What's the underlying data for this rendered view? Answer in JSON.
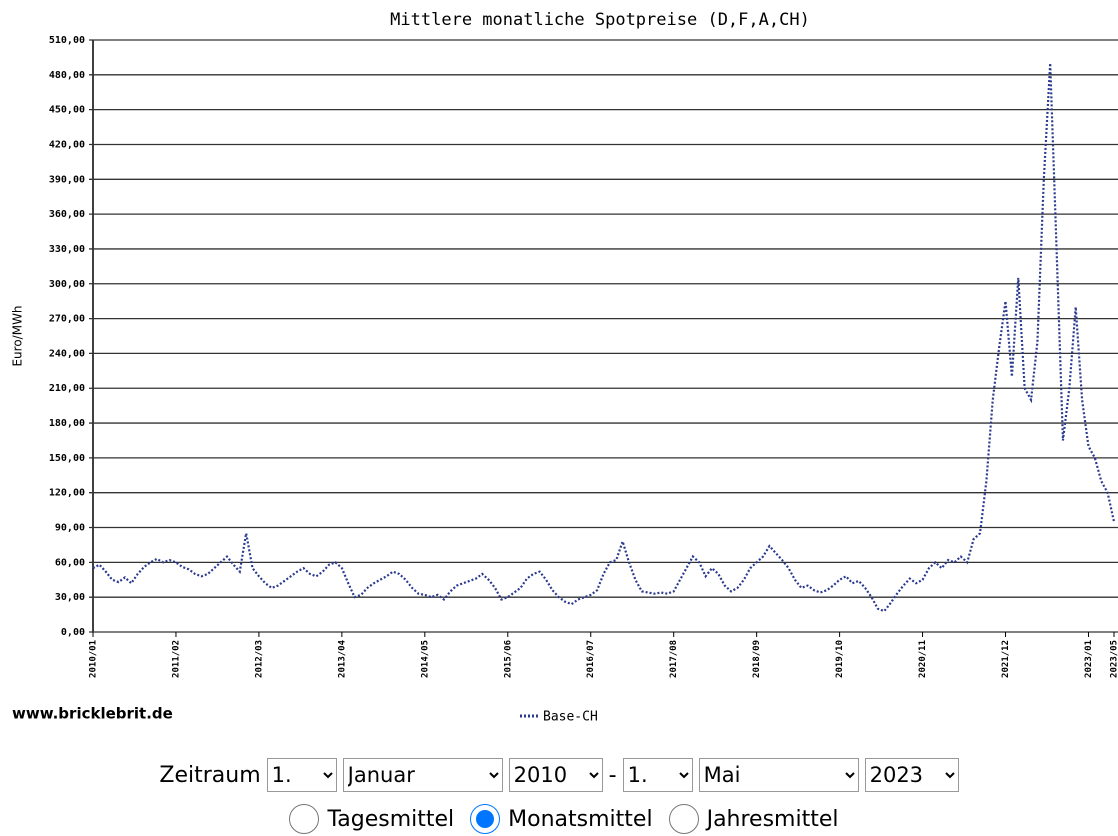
{
  "chart_data": {
    "type": "line",
    "title": "Mittlere monatliche Spotpreise (D,F,A,CH)",
    "y_label": "Euro/MWh",
    "source": "www.bricklebrit.de",
    "categories": [
      "2010/01",
      null,
      null,
      null,
      null,
      null,
      null,
      null,
      null,
      null,
      null,
      null,
      null,
      "2011/02",
      null,
      null,
      null,
      null,
      null,
      null,
      null,
      null,
      null,
      null,
      null,
      null,
      "2012/03",
      null,
      null,
      null,
      null,
      null,
      null,
      null,
      null,
      null,
      null,
      null,
      null,
      "2013/04",
      null,
      null,
      null,
      null,
      null,
      null,
      null,
      null,
      null,
      null,
      null,
      null,
      "2014/05",
      null,
      null,
      null,
      null,
      null,
      null,
      null,
      null,
      null,
      null,
      null,
      null,
      "2015/06",
      null,
      null,
      null,
      null,
      null,
      null,
      null,
      null,
      null,
      null,
      null,
      null,
      "2016/07",
      null,
      null,
      null,
      null,
      null,
      null,
      null,
      null,
      null,
      null,
      null,
      null,
      "2017/08",
      null,
      null,
      null,
      null,
      null,
      null,
      null,
      null,
      null,
      null,
      null,
      null,
      "2018/09",
      null,
      null,
      null,
      null,
      null,
      null,
      null,
      null,
      null,
      null,
      null,
      null,
      "2019/10",
      null,
      null,
      null,
      null,
      null,
      null,
      null,
      null,
      null,
      null,
      null,
      null,
      "2020/11",
      null,
      null,
      null,
      null,
      null,
      null,
      null,
      null,
      null,
      null,
      null,
      null,
      "2021/12",
      null,
      null,
      null,
      null,
      null,
      null,
      null,
      null,
      null,
      null,
      null,
      null,
      "2023/01",
      null,
      null,
      null,
      "2023/05"
    ],
    "series": [
      {
        "name": "Base-CH",
        "color": "#2b3a8f",
        "values": [
          55,
          58,
          52,
          45,
          43,
          47,
          42,
          50,
          56,
          60,
          63,
          60,
          62,
          60,
          56,
          54,
          50,
          48,
          50,
          55,
          60,
          65,
          58,
          52,
          85,
          55,
          48,
          42,
          38,
          40,
          44,
          48,
          52,
          55,
          50,
          48,
          52,
          58,
          60,
          55,
          42,
          30,
          32,
          38,
          42,
          45,
          48,
          52,
          50,
          45,
          38,
          33,
          32,
          30,
          32,
          28,
          35,
          40,
          42,
          44,
          46,
          50,
          45,
          38,
          28,
          30,
          34,
          38,
          46,
          50,
          52,
          45,
          36,
          30,
          26,
          24,
          28,
          30,
          32,
          36,
          50,
          60,
          62,
          78,
          60,
          45,
          35,
          34,
          33,
          34,
          33,
          35,
          45,
          55,
          65,
          60,
          48,
          55,
          50,
          40,
          35,
          38,
          45,
          55,
          60,
          65,
          74,
          68,
          62,
          55,
          45,
          38,
          40,
          36,
          34,
          36,
          40,
          45,
          48,
          42,
          44,
          38,
          30,
          20,
          18,
          25,
          33,
          40,
          46,
          42,
          45,
          55,
          60,
          55,
          62,
          60,
          65,
          60,
          80,
          85,
          130,
          200,
          245,
          285,
          220,
          305,
          210,
          200,
          250,
          390,
          490,
          330,
          165,
          210,
          280,
          200,
          160,
          150,
          130,
          120,
          95
        ]
      }
    ],
    "ylim": [
      0,
      510
    ],
    "yticks": [
      {
        "value": 0,
        "label": "0,00"
      },
      {
        "value": 30,
        "label": "30,00"
      },
      {
        "value": 60,
        "label": "60,00"
      },
      {
        "value": 90,
        "label": "90,00"
      },
      {
        "value": 120,
        "label": "120,00"
      },
      {
        "value": 150,
        "label": "150,00"
      },
      {
        "value": 180,
        "label": "180,00"
      },
      {
        "value": 210,
        "label": "210,00"
      },
      {
        "value": 240,
        "label": "240,00"
      },
      {
        "value": 270,
        "label": "270,00"
      },
      {
        "value": 300,
        "label": "300,00"
      },
      {
        "value": 330,
        "label": "330,00"
      },
      {
        "value": 360,
        "label": "360,00"
      },
      {
        "value": 390,
        "label": "390,00"
      },
      {
        "value": 420,
        "label": "420,00"
      },
      {
        "value": 450,
        "label": "450,00"
      },
      {
        "value": 480,
        "label": "480,00"
      },
      {
        "value": 510,
        "label": "510,00"
      }
    ],
    "grid": true
  },
  "controls": {
    "label": "Zeitraum",
    "from_day": "1.",
    "from_month": "Januar",
    "from_year": "2010",
    "separator": "-",
    "to_day": "1.",
    "to_month": "Mai",
    "to_year": "2023",
    "modes": [
      "Tagesmittel",
      "Monatsmittel",
      "Jahresmittel"
    ]
  }
}
